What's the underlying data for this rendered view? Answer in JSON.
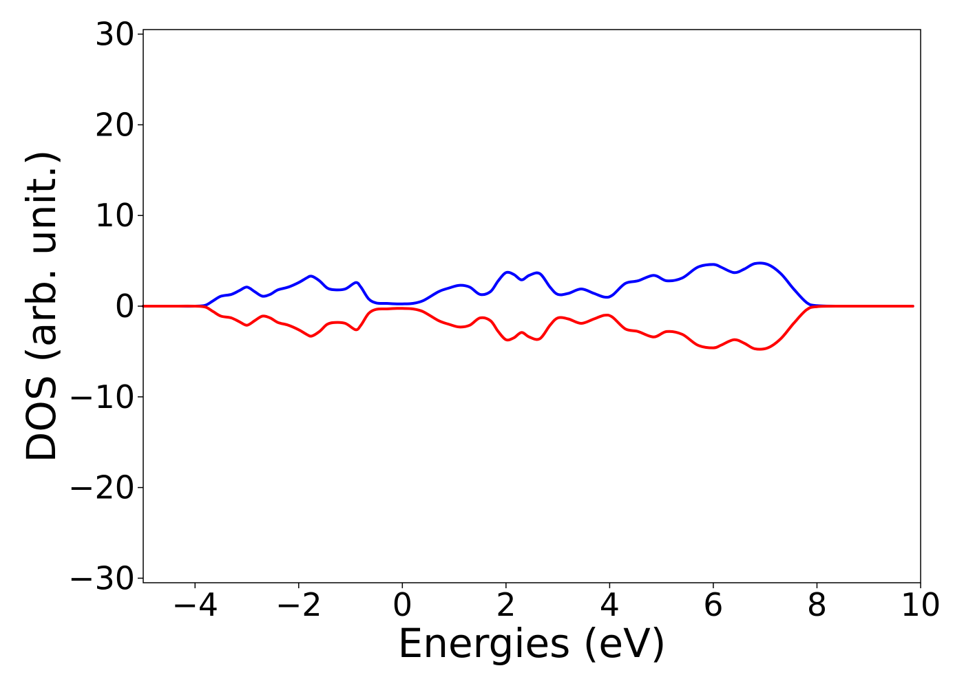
{
  "chart_data": {
    "type": "line",
    "title": "",
    "xlabel": "Energies (eV)",
    "ylabel": "DOS (arb. unit.)",
    "xlim": [
      -5,
      10
    ],
    "ylim": [
      -30.5,
      30.5
    ],
    "grid": false,
    "legend": "none",
    "xticks": [
      -4,
      -2,
      0,
      2,
      4,
      6,
      8,
      10
    ],
    "xtick_labels": [
      "−4",
      "−2",
      "0",
      "2",
      "4",
      "6",
      "8",
      "10"
    ],
    "yticks": [
      30,
      20,
      10,
      0,
      -10,
      -20,
      -30
    ],
    "ytick_labels": [
      "30",
      "20",
      "10",
      "0",
      "−10",
      "−20",
      "−30"
    ],
    "x": [
      -5.0,
      -4.5,
      -4.0,
      -3.8,
      -3.65,
      -3.5,
      -3.3,
      -3.15,
      -3.0,
      -2.85,
      -2.7,
      -2.55,
      -2.4,
      -2.2,
      -2.0,
      -1.85,
      -1.75,
      -1.6,
      -1.45,
      -1.3,
      -1.1,
      -0.9,
      -0.8,
      -0.65,
      -0.5,
      -0.3,
      -0.1,
      0.0,
      0.2,
      0.4,
      0.7,
      0.9,
      1.1,
      1.3,
      1.5,
      1.7,
      1.85,
      2.0,
      2.15,
      2.3,
      2.45,
      2.65,
      2.85,
      3.0,
      3.2,
      3.45,
      3.7,
      3.9,
      4.05,
      4.3,
      4.55,
      4.85,
      5.1,
      5.4,
      5.7,
      6.0,
      6.15,
      6.4,
      6.6,
      6.8,
      7.05,
      7.3,
      7.55,
      7.8,
      8.0,
      8.5,
      9.0,
      9.5,
      9.85
    ],
    "series": [
      {
        "color": "#0000ff",
        "values": [
          0.0,
          0.0,
          0.0,
          0.1,
          0.6,
          1.1,
          1.3,
          1.7,
          2.1,
          1.6,
          1.1,
          1.3,
          1.8,
          2.1,
          2.6,
          3.1,
          3.3,
          2.8,
          2.0,
          1.8,
          1.9,
          2.6,
          2.1,
          0.8,
          0.35,
          0.3,
          0.25,
          0.25,
          0.3,
          0.6,
          1.6,
          2.0,
          2.3,
          2.1,
          1.3,
          1.6,
          2.8,
          3.7,
          3.5,
          2.9,
          3.4,
          3.6,
          2.1,
          1.3,
          1.4,
          1.9,
          1.4,
          1.0,
          1.2,
          2.5,
          2.8,
          3.4,
          2.8,
          3.1,
          4.3,
          4.6,
          4.3,
          3.7,
          4.1,
          4.7,
          4.6,
          3.6,
          1.9,
          0.4,
          0.05,
          0.0,
          0.0,
          0.0,
          0.0
        ]
      },
      {
        "color": "#ff0000",
        "values": [
          0.0,
          0.0,
          0.0,
          -0.1,
          -0.6,
          -1.1,
          -1.3,
          -1.7,
          -2.1,
          -1.6,
          -1.1,
          -1.3,
          -1.8,
          -2.1,
          -2.6,
          -3.1,
          -3.3,
          -2.8,
          -2.0,
          -1.8,
          -1.9,
          -2.6,
          -2.1,
          -0.8,
          -0.35,
          -0.3,
          -0.25,
          -0.25,
          -0.3,
          -0.6,
          -1.6,
          -2.0,
          -2.3,
          -2.1,
          -1.3,
          -1.6,
          -2.8,
          -3.7,
          -3.5,
          -2.9,
          -3.4,
          -3.6,
          -2.1,
          -1.3,
          -1.4,
          -1.9,
          -1.4,
          -1.0,
          -1.2,
          -2.5,
          -2.8,
          -3.4,
          -2.8,
          -3.1,
          -4.3,
          -4.6,
          -4.3,
          -3.7,
          -4.1,
          -4.7,
          -4.6,
          -3.6,
          -1.9,
          -0.4,
          -0.05,
          0.0,
          0.0,
          0.0,
          0.0
        ]
      }
    ]
  }
}
